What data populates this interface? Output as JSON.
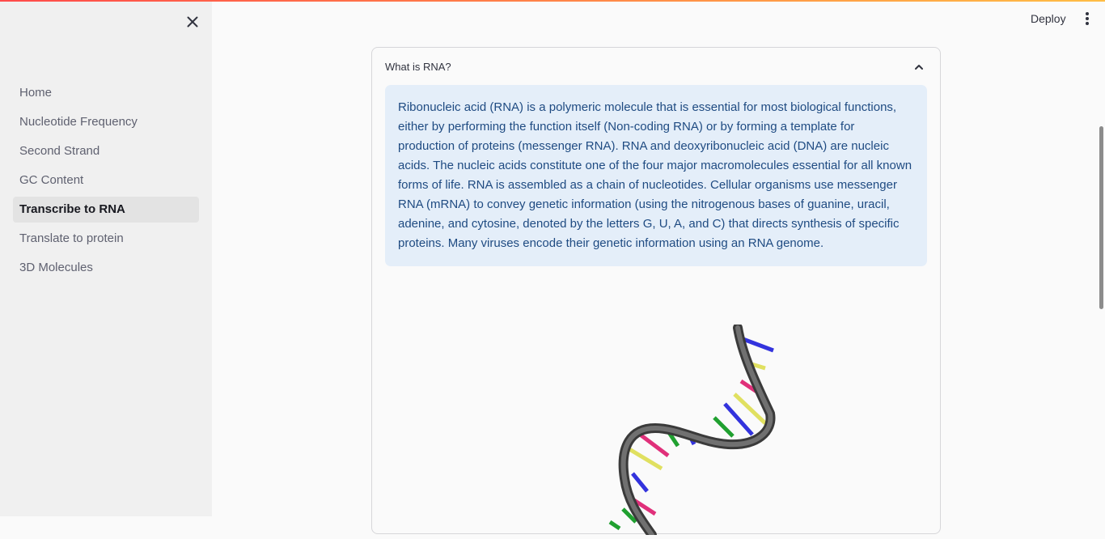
{
  "sidebar": {
    "close_icon": "close-icon",
    "items": [
      {
        "label": "Home",
        "active": false
      },
      {
        "label": "Nucleotide Frequency",
        "active": false
      },
      {
        "label": "Second Strand",
        "active": false
      },
      {
        "label": "GC Content",
        "active": false
      },
      {
        "label": "Transcribe to RNA",
        "active": true
      },
      {
        "label": "Translate to protein",
        "active": false
      },
      {
        "label": "3D Molecules",
        "active": false
      }
    ]
  },
  "header": {
    "deploy_label": "Deploy",
    "menu_icon": "vertical-dots-icon"
  },
  "expander": {
    "title": "What is RNA?",
    "chevron_icon": "chevron-up-icon",
    "body": "Ribonucleic acid (RNA) is a polymeric molecule that is essential for most biological functions, either by performing the function itself (Non-coding RNA) or by forming a template for production of proteins (messenger RNA). RNA and deoxyribonucleic acid (DNA) are nucleic acids. The nucleic acids constitute one of the four major macromolecules essential for all known forms of life. RNA is assembled as a chain of nucleotides. Cellular organisms use messenger RNA (mRNA) to convey genetic information (using the nitrogenous bases of guanine, uracil, adenine, and cytosine, denoted by the letters G, U, A, and C) that directs synthesis of specific proteins. Many viruses encode their genetic information using an RNA genome.",
    "image_icon": "rna-strand-illustration"
  },
  "colors": {
    "accent": "#ff4b4b",
    "info_bg": "#e4eef9",
    "info_text": "#1f4b82",
    "base_blue": "#3333dd",
    "base_yellow": "#e0e060",
    "base_pink": "#e0307a",
    "base_green": "#20a030",
    "backbone": "#555555"
  }
}
